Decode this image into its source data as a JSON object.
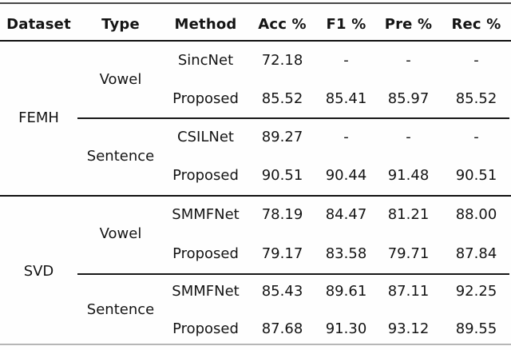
{
  "table": {
    "headers": {
      "dataset": "Dataset",
      "type": "Type",
      "method": "Method",
      "acc": "Acc %",
      "f1": "F1 %",
      "pre": "Pre %",
      "rec": "Rec %"
    },
    "datasets": {
      "femh": "FEMH",
      "svd": "SVD"
    },
    "types": {
      "femh_vowel": "Vowel",
      "femh_sentence": "Sentence",
      "svd_vowel": "Vowel",
      "svd_sentence": "Sentence"
    },
    "rows": [
      {
        "method": "SincNet",
        "acc": "72.18",
        "f1": "-",
        "pre": "-",
        "rec": "-"
      },
      {
        "method": "Proposed",
        "acc": "85.52",
        "f1": "85.41",
        "pre": "85.97",
        "rec": "85.52"
      },
      {
        "method": "CSILNet",
        "acc": "89.27",
        "f1": "-",
        "pre": "-",
        "rec": "-"
      },
      {
        "method": "Proposed",
        "acc": "90.51",
        "f1": "90.44",
        "pre": "91.48",
        "rec": "90.51"
      },
      {
        "method": "SMMFNet",
        "acc": "78.19",
        "f1": "84.47",
        "pre": "81.21",
        "rec": "88.00"
      },
      {
        "method": "Proposed",
        "acc": "79.17",
        "f1": "83.58",
        "pre": "79.71",
        "rec": "87.84"
      },
      {
        "method": "SMMFNet",
        "acc": "85.43",
        "f1": "89.61",
        "pre": "87.11",
        "rec": "92.25"
      },
      {
        "method": "Proposed",
        "acc": "87.68",
        "f1": "91.30",
        "pre": "93.12",
        "rec": "89.55"
      }
    ]
  },
  "colors": {
    "background": "#fefefe",
    "text": "#141414",
    "rule_dark": "#0f0f0f",
    "rule_top": "#474747",
    "rule_bottom": "#b6b6b6"
  },
  "chart_data": {
    "type": "table",
    "title": "",
    "columns": [
      "Dataset",
      "Type",
      "Method",
      "Acc %",
      "F1 %",
      "Pre %",
      "Rec %"
    ],
    "rows": [
      [
        "FEMH",
        "Vowel",
        "SincNet",
        "72.18",
        "-",
        "-",
        "-"
      ],
      [
        "FEMH",
        "Vowel",
        "Proposed",
        "85.52",
        "85.41",
        "85.97",
        "85.52"
      ],
      [
        "FEMH",
        "Sentence",
        "CSILNet",
        "89.27",
        "-",
        "-",
        "-"
      ],
      [
        "FEMH",
        "Sentence",
        "Proposed",
        "90.51",
        "90.44",
        "91.48",
        "90.51"
      ],
      [
        "SVD",
        "Vowel",
        "SMMFNet",
        "78.19",
        "84.47",
        "81.21",
        "88.00"
      ],
      [
        "SVD",
        "Vowel",
        "Proposed",
        "79.17",
        "83.58",
        "79.71",
        "87.84"
      ],
      [
        "SVD",
        "Sentence",
        "SMMFNet",
        "85.43",
        "89.61",
        "87.11",
        "92.25"
      ],
      [
        "SVD",
        "Sentence",
        "Proposed",
        "87.68",
        "91.30",
        "93.12",
        "89.55"
      ]
    ]
  }
}
